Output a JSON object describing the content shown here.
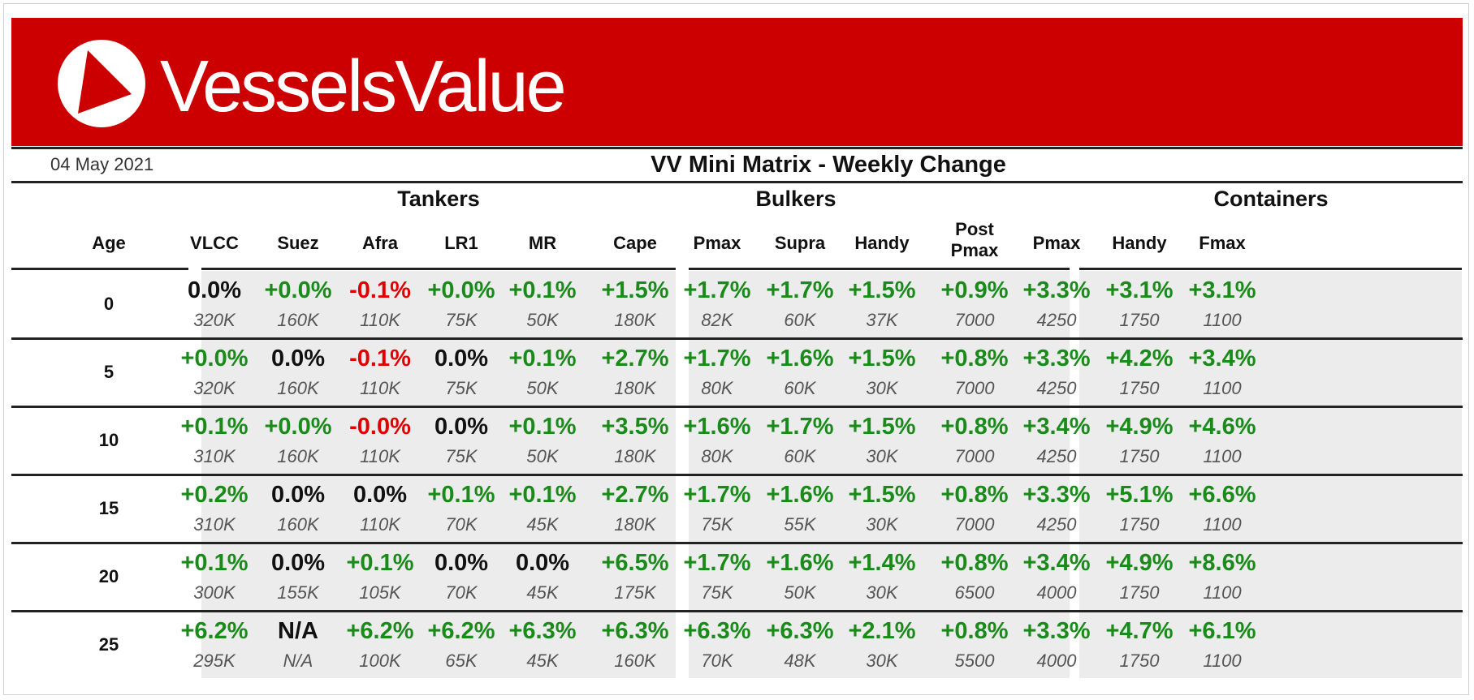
{
  "brand": {
    "name": "VesselsValue",
    "colors": {
      "banner": "#cc0000",
      "positive": "#1a8a1a",
      "negative": "#e00000",
      "neutral": "#111111"
    }
  },
  "report": {
    "date": "04 May 2021",
    "title": "VV Mini Matrix - Weekly Change"
  },
  "row_header": "Age",
  "groups": [
    {
      "name": "Tankers",
      "columns": [
        {
          "label": "VLCC"
        },
        {
          "label": "Suez"
        },
        {
          "label": "Afra"
        },
        {
          "label": "LR1"
        },
        {
          "label": "MR"
        }
      ]
    },
    {
      "name": "Bulkers",
      "columns": [
        {
          "label": "Cape"
        },
        {
          "label": "Pmax"
        },
        {
          "label": "Supra"
        },
        {
          "label": "Handy"
        }
      ]
    },
    {
      "name": "Containers",
      "columns": [
        {
          "label": "Post",
          "label2": "Pmax"
        },
        {
          "label": "Pmax"
        },
        {
          "label": "Handy"
        },
        {
          "label": "Fmax"
        }
      ]
    }
  ],
  "rows": [
    {
      "age": "0",
      "cells": [
        {
          "change": "0.0%",
          "size": "320K",
          "trend": "neutral"
        },
        {
          "change": "+0.0%",
          "size": "160K",
          "trend": "positive"
        },
        {
          "change": "-0.1%",
          "size": "110K",
          "trend": "negative"
        },
        {
          "change": "+0.0%",
          "size": "75K",
          "trend": "positive"
        },
        {
          "change": "+0.1%",
          "size": "50K",
          "trend": "positive"
        },
        {
          "change": "+1.5%",
          "size": "180K",
          "trend": "positive"
        },
        {
          "change": "+1.7%",
          "size": "82K",
          "trend": "positive"
        },
        {
          "change": "+1.7%",
          "size": "60K",
          "trend": "positive"
        },
        {
          "change": "+1.5%",
          "size": "37K",
          "trend": "positive"
        },
        {
          "change": "+0.9%",
          "size": "7000",
          "trend": "positive"
        },
        {
          "change": "+3.3%",
          "size": "4250",
          "trend": "positive"
        },
        {
          "change": "+3.1%",
          "size": "1750",
          "trend": "positive"
        },
        {
          "change": "+3.1%",
          "size": "1100",
          "trend": "positive"
        }
      ]
    },
    {
      "age": "5",
      "cells": [
        {
          "change": "+0.0%",
          "size": "320K",
          "trend": "positive"
        },
        {
          "change": "0.0%",
          "size": "160K",
          "trend": "neutral"
        },
        {
          "change": "-0.1%",
          "size": "110K",
          "trend": "negative"
        },
        {
          "change": "0.0%",
          "size": "75K",
          "trend": "neutral"
        },
        {
          "change": "+0.1%",
          "size": "50K",
          "trend": "positive"
        },
        {
          "change": "+2.7%",
          "size": "180K",
          "trend": "positive"
        },
        {
          "change": "+1.7%",
          "size": "80K",
          "trend": "positive"
        },
        {
          "change": "+1.6%",
          "size": "60K",
          "trend": "positive"
        },
        {
          "change": "+1.5%",
          "size": "30K",
          "trend": "positive"
        },
        {
          "change": "+0.8%",
          "size": "7000",
          "trend": "positive"
        },
        {
          "change": "+3.3%",
          "size": "4250",
          "trend": "positive"
        },
        {
          "change": "+4.2%",
          "size": "1750",
          "trend": "positive"
        },
        {
          "change": "+3.4%",
          "size": "1100",
          "trend": "positive"
        }
      ]
    },
    {
      "age": "10",
      "cells": [
        {
          "change": "+0.1%",
          "size": "310K",
          "trend": "positive"
        },
        {
          "change": "+0.0%",
          "size": "160K",
          "trend": "positive"
        },
        {
          "change": "-0.0%",
          "size": "110K",
          "trend": "negative"
        },
        {
          "change": "0.0%",
          "size": "75K",
          "trend": "neutral"
        },
        {
          "change": "+0.1%",
          "size": "50K",
          "trend": "positive"
        },
        {
          "change": "+3.5%",
          "size": "180K",
          "trend": "positive"
        },
        {
          "change": "+1.6%",
          "size": "80K",
          "trend": "positive"
        },
        {
          "change": "+1.7%",
          "size": "60K",
          "trend": "positive"
        },
        {
          "change": "+1.5%",
          "size": "30K",
          "trend": "positive"
        },
        {
          "change": "+0.8%",
          "size": "7000",
          "trend": "positive"
        },
        {
          "change": "+3.4%",
          "size": "4250",
          "trend": "positive"
        },
        {
          "change": "+4.9%",
          "size": "1750",
          "trend": "positive"
        },
        {
          "change": "+4.6%",
          "size": "1100",
          "trend": "positive"
        }
      ]
    },
    {
      "age": "15",
      "cells": [
        {
          "change": "+0.2%",
          "size": "310K",
          "trend": "positive"
        },
        {
          "change": "0.0%",
          "size": "160K",
          "trend": "neutral"
        },
        {
          "change": "0.0%",
          "size": "110K",
          "trend": "neutral"
        },
        {
          "change": "+0.1%",
          "size": "70K",
          "trend": "positive"
        },
        {
          "change": "+0.1%",
          "size": "45K",
          "trend": "positive"
        },
        {
          "change": "+2.7%",
          "size": "180K",
          "trend": "positive"
        },
        {
          "change": "+1.7%",
          "size": "75K",
          "trend": "positive"
        },
        {
          "change": "+1.6%",
          "size": "55K",
          "trend": "positive"
        },
        {
          "change": "+1.5%",
          "size": "30K",
          "trend": "positive"
        },
        {
          "change": "+0.8%",
          "size": "7000",
          "trend": "positive"
        },
        {
          "change": "+3.3%",
          "size": "4250",
          "trend": "positive"
        },
        {
          "change": "+5.1%",
          "size": "1750",
          "trend": "positive"
        },
        {
          "change": "+6.6%",
          "size": "1100",
          "trend": "positive"
        }
      ]
    },
    {
      "age": "20",
      "cells": [
        {
          "change": "+0.1%",
          "size": "300K",
          "trend": "positive"
        },
        {
          "change": "0.0%",
          "size": "155K",
          "trend": "neutral"
        },
        {
          "change": "+0.1%",
          "size": "105K",
          "trend": "positive"
        },
        {
          "change": "0.0%",
          "size": "70K",
          "trend": "neutral"
        },
        {
          "change": "0.0%",
          "size": "45K",
          "trend": "neutral"
        },
        {
          "change": "+6.5%",
          "size": "175K",
          "trend": "positive"
        },
        {
          "change": "+1.7%",
          "size": "75K",
          "trend": "positive"
        },
        {
          "change": "+1.6%",
          "size": "50K",
          "trend": "positive"
        },
        {
          "change": "+1.4%",
          "size": "30K",
          "trend": "positive"
        },
        {
          "change": "+0.8%",
          "size": "6500",
          "trend": "positive"
        },
        {
          "change": "+3.4%",
          "size": "4000",
          "trend": "positive"
        },
        {
          "change": "+4.9%",
          "size": "1750",
          "trend": "positive"
        },
        {
          "change": "+8.6%",
          "size": "1100",
          "trend": "positive"
        }
      ]
    },
    {
      "age": "25",
      "cells": [
        {
          "change": "+6.2%",
          "size": "295K",
          "trend": "positive"
        },
        {
          "change": "N/A",
          "size": "N/A",
          "trend": "neutral"
        },
        {
          "change": "+6.2%",
          "size": "100K",
          "trend": "positive"
        },
        {
          "change": "+6.2%",
          "size": "65K",
          "trend": "positive"
        },
        {
          "change": "+6.3%",
          "size": "45K",
          "trend": "positive"
        },
        {
          "change": "+6.3%",
          "size": "160K",
          "trend": "positive"
        },
        {
          "change": "+6.3%",
          "size": "70K",
          "trend": "positive"
        },
        {
          "change": "+6.3%",
          "size": "48K",
          "trend": "positive"
        },
        {
          "change": "+2.1%",
          "size": "30K",
          "trend": "positive"
        },
        {
          "change": "+0.8%",
          "size": "5500",
          "trend": "positive"
        },
        {
          "change": "+3.3%",
          "size": "4000",
          "trend": "positive"
        },
        {
          "change": "+4.7%",
          "size": "1750",
          "trend": "positive"
        },
        {
          "change": "+6.1%",
          "size": "1100",
          "trend": "positive"
        }
      ]
    }
  ]
}
